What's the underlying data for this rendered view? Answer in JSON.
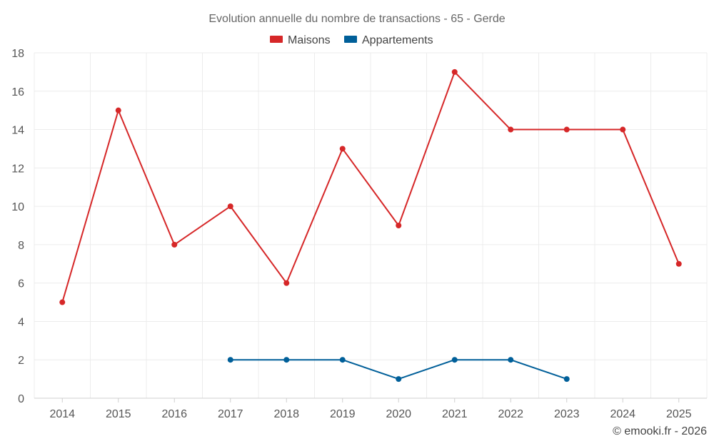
{
  "chart_data": {
    "type": "line",
    "title": "Evolution annuelle du nombre de transactions - 65 - Gerde",
    "categories": [
      "2014",
      "2015",
      "2016",
      "2017",
      "2018",
      "2019",
      "2020",
      "2021",
      "2022",
      "2023",
      "2024",
      "2025"
    ],
    "series": [
      {
        "name": "Maisons",
        "color": "#d62728",
        "values": [
          5,
          15,
          8,
          10,
          6,
          13,
          9,
          17,
          14,
          14,
          14,
          7
        ]
      },
      {
        "name": "Appartements",
        "color": "#005f99",
        "values": [
          null,
          null,
          null,
          2,
          2,
          2,
          1,
          2,
          2,
          1,
          null,
          null
        ]
      }
    ],
    "yticks": [
      0,
      2,
      4,
      6,
      8,
      10,
      12,
      14,
      16,
      18
    ],
    "ylim": [
      0,
      18
    ],
    "grid": true,
    "legend": "top-center",
    "xlabel": "",
    "ylabel": ""
  },
  "footer": {
    "credit": "© emooki.fr - 2026"
  }
}
